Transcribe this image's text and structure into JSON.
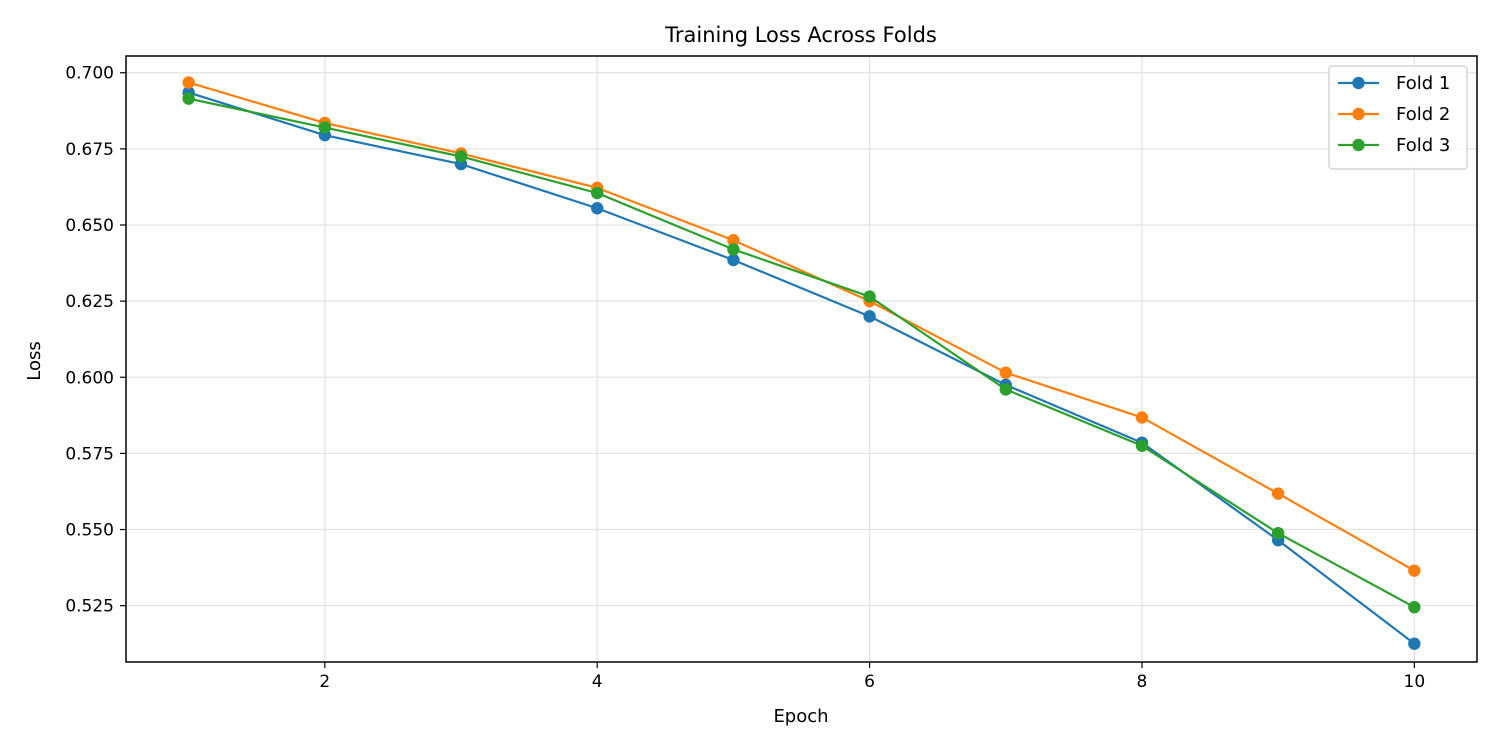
{
  "chart_data": {
    "type": "line",
    "title": "Training Loss Across Folds",
    "xlabel": "Epoch",
    "ylabel": "Loss",
    "xlim": [
      0.54,
      10.46
    ],
    "ylim": [
      0.5065,
      0.7055
    ],
    "x": [
      1,
      2,
      3,
      4,
      5,
      6,
      7,
      8,
      9,
      10
    ],
    "x_ticks": [
      2,
      4,
      6,
      8,
      10
    ],
    "x_tick_labels": [
      "2",
      "4",
      "6",
      "8",
      "10"
    ],
    "y_ticks": [
      0.525,
      0.55,
      0.575,
      0.6,
      0.625,
      0.65,
      0.675,
      0.7
    ],
    "y_tick_labels": [
      "0.525",
      "0.550",
      "0.575",
      "0.600",
      "0.625",
      "0.650",
      "0.675",
      "0.700"
    ],
    "grid": true,
    "legend_position": "top-right",
    "series": [
      {
        "name": "Fold 1",
        "color": "#1f77b4",
        "values": [
          0.6935,
          0.6795,
          0.67,
          0.6555,
          0.6385,
          0.62,
          0.5975,
          0.5785,
          0.5465,
          0.5125
        ]
      },
      {
        "name": "Fold 2",
        "color": "#ff7f0e",
        "values": [
          0.6968,
          0.6835,
          0.6735,
          0.6622,
          0.645,
          0.625,
          0.6015,
          0.5868,
          0.5618,
          0.5365
        ]
      },
      {
        "name": "Fold 3",
        "color": "#2ca02c",
        "values": [
          0.6915,
          0.682,
          0.6725,
          0.6605,
          0.642,
          0.6265,
          0.596,
          0.5775,
          0.5488,
          0.5245
        ]
      }
    ]
  }
}
